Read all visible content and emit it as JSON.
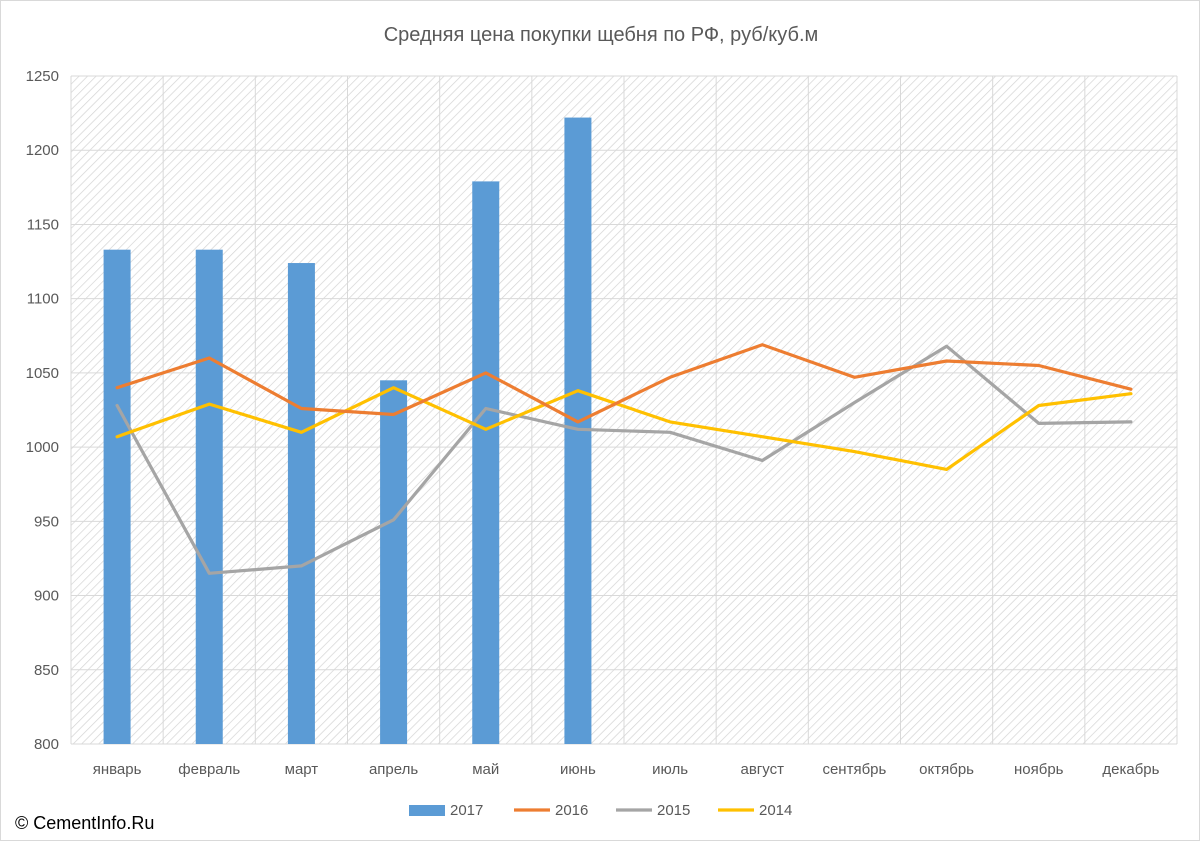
{
  "copyright": "© CementInfo.Ru",
  "colors": {
    "s2017": "#5b9bd5",
    "s2016": "#ed7d31",
    "s2015": "#a5a5a5",
    "s2014": "#ffc000",
    "grid": "#d9d9d9",
    "axis_text": "#595959",
    "hatch": "#d4d4d4"
  },
  "chart_data": {
    "type": "bar",
    "title": "Средняя цена покупки щебня по РФ, руб/куб.м",
    "xlabel": "",
    "ylabel": "",
    "ylim": [
      800,
      1250
    ],
    "yticks": [
      800,
      850,
      900,
      950,
      1000,
      1050,
      1100,
      1150,
      1200,
      1250
    ],
    "grid": true,
    "plot_background": "diagonal-hatch",
    "legend_position": "bottom",
    "categories": [
      "январь",
      "февраль",
      "март",
      "апрель",
      "май",
      "июнь",
      "июль",
      "август",
      "сентябрь",
      "октябрь",
      "ноябрь",
      "декабрь"
    ],
    "series": [
      {
        "name": "2017",
        "kind": "bar",
        "color": "#5b9bd5",
        "values": [
          1133,
          1133,
          1124,
          1045,
          1179,
          1222,
          null,
          null,
          null,
          null,
          null,
          null
        ]
      },
      {
        "name": "2016",
        "kind": "line",
        "color": "#ed7d31",
        "values": [
          1040,
          1060,
          1026,
          1022,
          1050,
          1017,
          1047,
          1069,
          1047,
          1058,
          1055,
          1039
        ]
      },
      {
        "name": "2015",
        "kind": "line",
        "color": "#a5a5a5",
        "values": [
          1028,
          915,
          920,
          951,
          1026,
          1012,
          1010,
          991,
          1030,
          1068,
          1016,
          1017
        ]
      },
      {
        "name": "2014",
        "kind": "line",
        "color": "#ffc000",
        "values": [
          1007,
          1029,
          1010,
          1040,
          1012,
          1038,
          1017,
          1007,
          997,
          985,
          1028,
          1036
        ]
      }
    ]
  }
}
